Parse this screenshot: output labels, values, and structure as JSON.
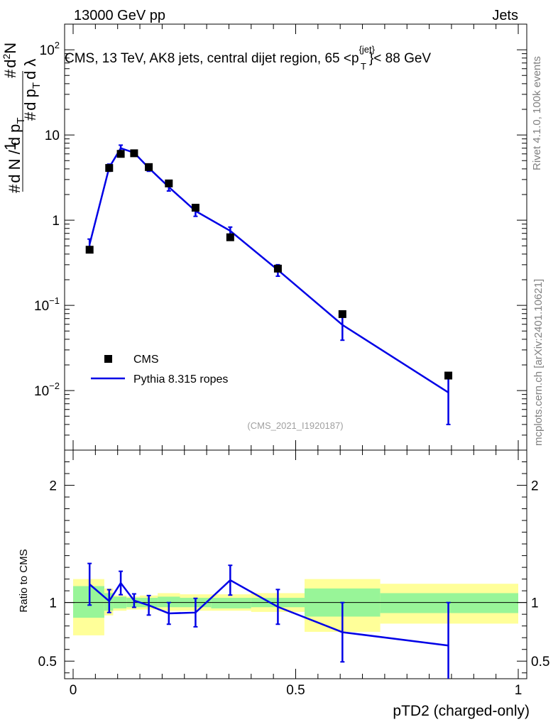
{
  "header": {
    "beam_label": "13000 GeV pp",
    "category": "Jets",
    "rivet_label": "Rivet 4.1.0,  100k events",
    "site_label": "mcplots.cern.ch [arXiv:2401.10621]",
    "analysis_id": "(CMS_2021_I1920187)"
  },
  "chart_data": {
    "type": "line",
    "title": "CMS, 13 TeV, AK8 jets, central dijet region, 65 <p_T^{jet}< 88 GeV",
    "xlabel": "pTD2 (charged-only)",
    "ylabel": "1/(dN/dp_T) d²N/(dp_T dλ)",
    "ratio_ylabel": "Ratio to CMS",
    "xlim": [
      0,
      1
    ],
    "ylim": [
      0.002,
      200
    ],
    "ylim_ratio": [
      0.35,
      2.3
    ],
    "yscale": "log",
    "x_ticks": [
      "0",
      "0.5",
      "1"
    ],
    "y_ticks": [
      "10^-2",
      "10^-1",
      "1",
      "10",
      "10^2"
    ],
    "ratio_y_ticks": [
      "0.5",
      "1",
      "2"
    ],
    "legend": [
      {
        "name": "CMS",
        "marker": "square"
      },
      {
        "name": "Pythia 8.315 ropes",
        "marker": "line"
      }
    ],
    "bins": [
      {
        "lo": 0.0,
        "hi": 0.07,
        "x": 0.037,
        "data": 0.45,
        "mc": 0.52,
        "mc_err": 0.08,
        "stat_lo": 0.87,
        "stat_hi": 1.14,
        "tot_lo": 0.72,
        "tot_hi": 1.2
      },
      {
        "lo": 0.07,
        "hi": 0.09,
        "x": 0.081,
        "data": 4.1,
        "mc": 4.15,
        "mc_err": 0.4,
        "stat_lo": 0.93,
        "stat_hi": 1.08,
        "tot_lo": 0.89,
        "tot_hi": 1.12
      },
      {
        "lo": 0.09,
        "hi": 0.12,
        "x": 0.107,
        "data": 6.0,
        "mc": 7.0,
        "mc_err": 0.6,
        "stat_lo": 0.95,
        "stat_hi": 1.05,
        "tot_lo": 0.93,
        "tot_hi": 1.06
      },
      {
        "lo": 0.12,
        "hi": 0.15,
        "x": 0.137,
        "data": 6.1,
        "mc": 6.2,
        "mc_err": 0.35,
        "stat_lo": 0.96,
        "stat_hi": 1.04,
        "tot_lo": 0.94,
        "tot_hi": 1.05
      },
      {
        "lo": 0.15,
        "hi": 0.19,
        "x": 0.17,
        "data": 4.2,
        "mc": 4.1,
        "mc_err": 0.35,
        "stat_lo": 0.96,
        "stat_hi": 1.04,
        "tot_lo": 0.94,
        "tot_hi": 1.06
      },
      {
        "lo": 0.19,
        "hi": 0.24,
        "x": 0.215,
        "data": 2.7,
        "mc": 2.45,
        "mc_err": 0.25,
        "stat_lo": 0.96,
        "stat_hi": 1.05,
        "tot_lo": 0.93,
        "tot_hi": 1.08
      },
      {
        "lo": 0.24,
        "hi": 0.31,
        "x": 0.275,
        "data": 1.4,
        "mc": 1.28,
        "mc_err": 0.17,
        "stat_lo": 0.96,
        "stat_hi": 1.04,
        "tot_lo": 0.93,
        "tot_hi": 1.07
      },
      {
        "lo": 0.31,
        "hi": 0.4,
        "x": 0.353,
        "data": 0.63,
        "mc": 0.75,
        "mc_err": 0.08,
        "stat_lo": 0.95,
        "stat_hi": 1.04,
        "tot_lo": 0.93,
        "tot_hi": 1.07
      },
      {
        "lo": 0.4,
        "hi": 0.52,
        "x": 0.46,
        "data": 0.27,
        "mc": 0.26,
        "mc_err": 0.04,
        "stat_lo": 0.96,
        "stat_hi": 1.04,
        "tot_lo": 0.92,
        "tot_hi": 1.08
      },
      {
        "lo": 0.52,
        "hi": 0.69,
        "x": 0.605,
        "data": 0.079,
        "mc": 0.059,
        "mc_err": 0.02,
        "stat_lo": 0.88,
        "stat_hi": 1.12,
        "tot_lo": 0.75,
        "tot_hi": 1.2
      },
      {
        "lo": 0.69,
        "hi": 1.0,
        "x": 0.843,
        "data": 0.015,
        "mc": 0.0095,
        "mc_err": 0.0055,
        "stat_lo": 0.91,
        "stat_hi": 1.08,
        "tot_lo": 0.82,
        "tot_hi": 1.16
      }
    ]
  },
  "colors": {
    "mc_line": "#0000e6",
    "stat_band": "#98f598",
    "total_band": "#ffff99",
    "data_marker": "#000000",
    "side_text": "#808080"
  }
}
